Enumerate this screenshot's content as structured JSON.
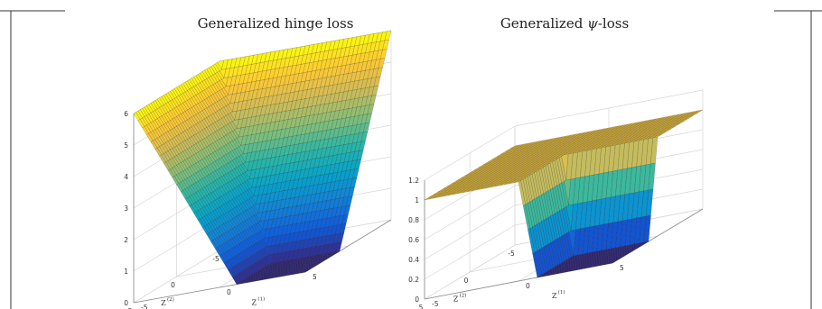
{
  "figure": {
    "colormap": [
      "#352a87",
      "#0f5cdd",
      "#1481d6",
      "#06a4ca",
      "#2eb7a4",
      "#87bf77",
      "#d1bb59",
      "#fec832",
      "#f9fb0e"
    ],
    "surface_edge_color": "#000000"
  },
  "chart_data": [
    {
      "type": "surface3d",
      "title": "Generalized hinge loss",
      "xlabel": "Z",
      "xlabel_sup": "(2)",
      "ylabel": "Z",
      "ylabel_sup": "(1)",
      "x_ticks": [
        "-5",
        "0",
        "5"
      ],
      "y_ticks": [
        "-5",
        "0",
        "5"
      ],
      "z_ticks": [
        "0",
        "1",
        "2",
        "3",
        "4",
        "5",
        "6"
      ],
      "xlim": [
        -5,
        5
      ],
      "ylim": [
        -5,
        5
      ],
      "zlim": [
        0,
        6
      ],
      "grid": true,
      "surface_function": "max(0, 1 - min(Z1, Z2))",
      "samples": {
        "Z": [
          -5,
          -2.5,
          0,
          1,
          2.5,
          5
        ],
        "loss_Z2_equals_5": [
          6,
          3.5,
          1,
          0,
          0,
          0
        ],
        "loss_Z1_equals_Z2": [
          6,
          3.5,
          1,
          0,
          0,
          0
        ]
      }
    },
    {
      "type": "surface3d",
      "title_prefix": "Generalized ",
      "title_symbol": "ψ",
      "title_suffix": "-loss",
      "xlabel": "Z",
      "xlabel_sup": "(2)",
      "ylabel": "Z",
      "ylabel_sup": "(1)",
      "x_ticks": [
        "-5",
        "0",
        "5"
      ],
      "y_ticks": [
        "-5",
        "0",
        "5"
      ],
      "z_ticks": [
        "0",
        "0.2",
        "0.4",
        "0.6",
        "0.8",
        "1",
        "1.2"
      ],
      "xlim": [
        -5,
        5
      ],
      "ylim": [
        -5,
        5
      ],
      "zlim": [
        0,
        1.2
      ],
      "grid": true,
      "surface_function": "1 - clip(min(Z1, Z2), 0, 1)",
      "samples": {
        "Z": [
          -5,
          -2.5,
          0,
          0.5,
          1,
          2.5,
          5
        ],
        "loss": [
          1,
          1,
          1,
          0.5,
          0,
          0,
          0
        ]
      }
    }
  ]
}
